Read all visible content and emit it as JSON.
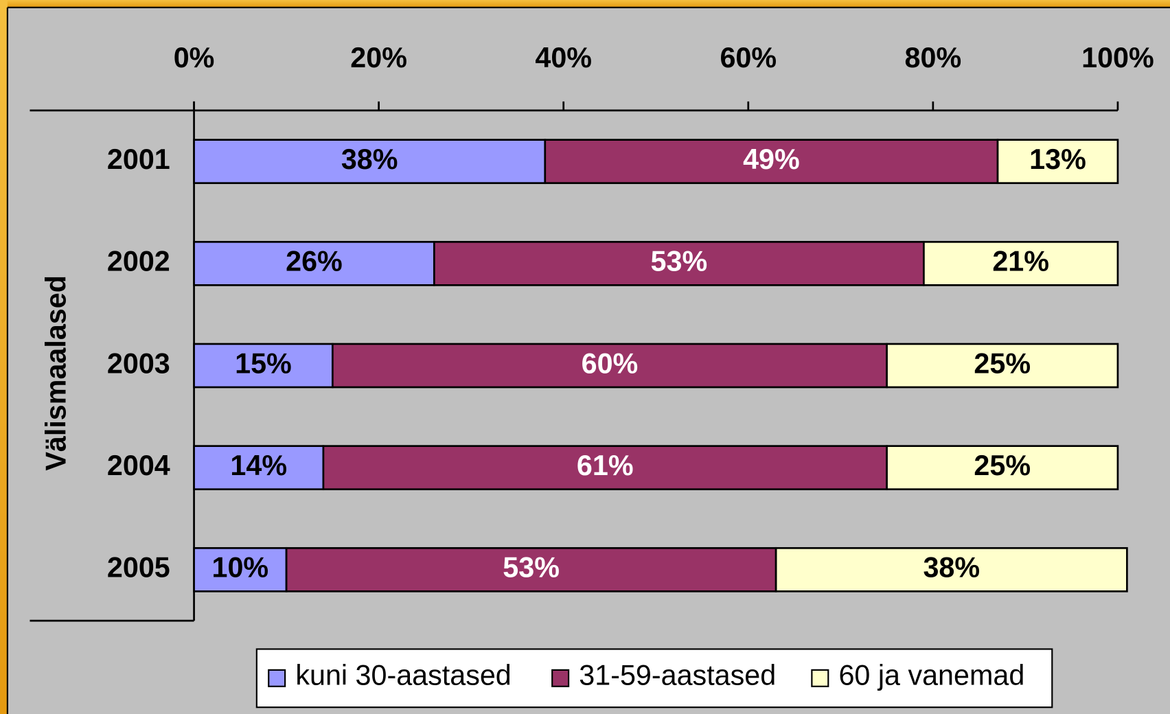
{
  "chart_data": {
    "type": "stacked-bar-horizontal",
    "y_label": "Välismaalased",
    "categories": [
      "2001",
      "2002",
      "2003",
      "2004",
      "2005"
    ],
    "series": [
      {
        "name": "kuni 30-aastased",
        "color": "#9999ff",
        "label_color": "#000000",
        "values": [
          38,
          26,
          15,
          14,
          10
        ],
        "value_labels": [
          "38%",
          "26%",
          "15%",
          "14%",
          "10%"
        ]
      },
      {
        "name": "31-59-aastased",
        "color": "#993366",
        "label_color": "#ffffff",
        "values": [
          49,
          53,
          60,
          61,
          53
        ],
        "value_labels": [
          "49%",
          "53%",
          "60%",
          "61%",
          "53%"
        ]
      },
      {
        "name": "60 ja vanemad",
        "color": "#ffffcc",
        "label_color": "#000000",
        "values": [
          13,
          21,
          25,
          25,
          38
        ],
        "value_labels": [
          "13%",
          "21%",
          "25%",
          "25%",
          "38%"
        ]
      }
    ],
    "xlim": [
      0,
      100
    ],
    "xticks": [
      {
        "value": 0,
        "label": "0%"
      },
      {
        "value": 20,
        "label": "20%"
      },
      {
        "value": 40,
        "label": "40%"
      },
      {
        "value": 60,
        "label": "60%"
      },
      {
        "value": 80,
        "label": "80%"
      },
      {
        "value": 100,
        "label": "100%"
      }
    ],
    "legend": "bottom"
  }
}
